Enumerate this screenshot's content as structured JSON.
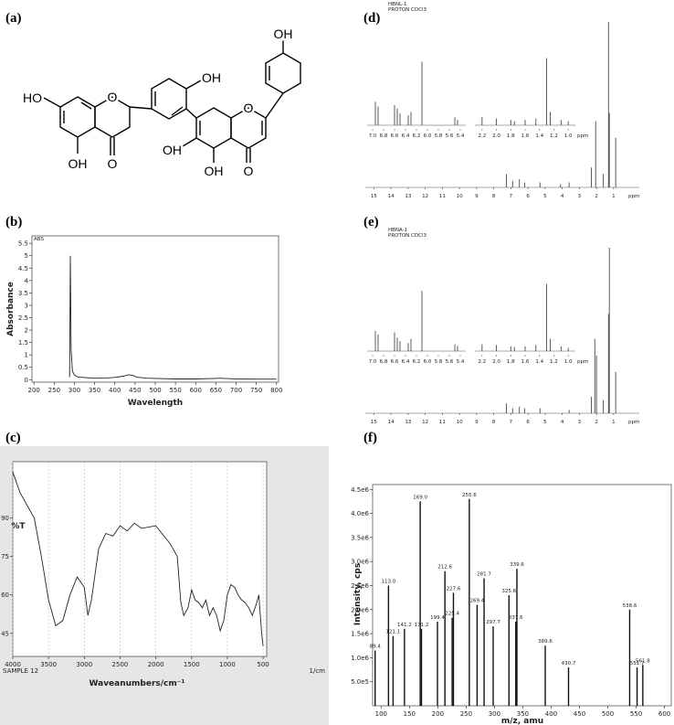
{
  "panel_labels": [
    "(a)",
    "(b)",
    "(c)",
    "(d)",
    "(e)",
    "(f)"
  ],
  "structure": {
    "labels": [
      "HO",
      "OH",
      "O",
      "O",
      "OH",
      "OH",
      "OH",
      "O",
      "O",
      "OH"
    ]
  },
  "chart_data": [
    {
      "type": "line",
      "x_label": "Wavelength",
      "y_label": "Absorbance",
      "y_unit_label": "ABS",
      "x": [
        288,
        289,
        290,
        292,
        295,
        300,
        310,
        330,
        350,
        380,
        400,
        420,
        435,
        445,
        455,
        480,
        500,
        550,
        600,
        650,
        660,
        700,
        750,
        800
      ],
      "values": [
        0.1,
        2.5,
        5.0,
        1.2,
        0.35,
        0.18,
        0.1,
        0.08,
        0.06,
        0.07,
        0.09,
        0.14,
        0.2,
        0.17,
        0.1,
        0.06,
        0.05,
        0.03,
        0.03,
        0.05,
        0.06,
        0.03,
        0.02,
        0.02
      ],
      "color": "#222",
      "xlim": [
        195,
        805
      ],
      "ylim": [
        -0.1,
        5.8
      ],
      "xticks": [
        200,
        250,
        300,
        350,
        400,
        450,
        500,
        550,
        600,
        650,
        700,
        750,
        800
      ],
      "yticks": [
        0,
        0.5,
        1,
        1.5,
        2,
        2.5,
        3,
        3.5,
        4,
        4.5,
        5,
        5.5
      ],
      "grid": false
    },
    {
      "type": "line",
      "x_label": "Waveanumbers/cm⁻¹",
      "y_label": "%T",
      "note": "SAMPLE 12",
      "x_unit": "1/cm",
      "x": [
        4000,
        3900,
        3700,
        3600,
        3500,
        3400,
        3300,
        3200,
        3100,
        3000,
        2950,
        2900,
        2800,
        2700,
        2600,
        2500,
        2400,
        2300,
        2200,
        2000,
        1800,
        1700,
        1650,
        1610,
        1550,
        1500,
        1450,
        1400,
        1350,
        1300,
        1250,
        1200,
        1150,
        1100,
        1050,
        1000,
        950,
        900,
        850,
        800,
        750,
        700,
        650,
        600,
        560,
        520,
        500
      ],
      "values": [
        108,
        100,
        90,
        75,
        58,
        48,
        50,
        60,
        67,
        63,
        52,
        58,
        78,
        84,
        83,
        87,
        85,
        88,
        86,
        87,
        80,
        75,
        57,
        52,
        55,
        62,
        58,
        57,
        55,
        58,
        52,
        55,
        52,
        46,
        50,
        60,
        64,
        63,
        60,
        58,
        57,
        55,
        52,
        56,
        60,
        45,
        40
      ],
      "color": "#222",
      "xlim": [
        4000,
        450
      ],
      "ylim": [
        36,
        112
      ],
      "xticks": [
        4000,
        3500,
        3000,
        2500,
        2000,
        1500,
        1000,
        500
      ],
      "yticks": [
        45,
        60,
        75,
        90
      ],
      "grid": true
    },
    {
      "type": "nmr",
      "header": [
        "HBNL-1",
        "PROTON CDCl3"
      ],
      "x_unit": "ppm",
      "color": "#333",
      "xlim": [
        15.5,
        -0.5
      ],
      "ylim": [
        0,
        105
      ],
      "xticks": [
        15,
        14,
        13,
        12,
        11,
        10,
        9,
        8,
        7,
        6,
        5,
        4,
        3,
        2,
        1
      ],
      "x": [
        7.26,
        6.9,
        6.5,
        6.2,
        5.3,
        4.1,
        3.6,
        2.3,
        2.05,
        1.6,
        1.3,
        1.25,
        0.88
      ],
      "values": [
        8,
        4,
        5,
        3,
        3,
        2,
        3,
        12,
        40,
        8,
        100,
        45,
        30
      ],
      "insets": [
        {
          "xlim": [
            7.1,
            5.3
          ],
          "ylim": [
            0,
            105
          ],
          "xticks": [
            {
              "value": 7,
              "label": "7.0"
            },
            6.8,
            6.6,
            6.4,
            6.2,
            {
              "value": 6,
              "label": "6.0"
            },
            5.8,
            5.6,
            5.4
          ],
          "x": [
            6.95,
            6.9,
            6.6,
            6.55,
            6.5,
            6.35,
            6.3,
            6.1,
            5.5,
            5.45
          ],
          "values": [
            35,
            28,
            30,
            25,
            18,
            15,
            20,
            95,
            12,
            8
          ]
        },
        {
          "xlim": [
            2.3,
            0.9
          ],
          "ylim": [
            0,
            105
          ],
          "x_unit": "ppm",
          "xticks": [
            2.2,
            {
              "value": 2,
              "label": "2.0"
            },
            1.8,
            1.6,
            1.4,
            1.2,
            {
              "value": 1,
              "label": "1.0"
            }
          ],
          "x": [
            2.2,
            2.0,
            1.8,
            1.75,
            1.6,
            1.45,
            1.3,
            1.25,
            1.1,
            1.0
          ],
          "values": [
            12,
            10,
            8,
            6,
            8,
            10,
            100,
            20,
            8,
            6
          ]
        }
      ]
    },
    {
      "type": "nmr",
      "header": [
        "HBNA-1",
        "PROTON CDCl3"
      ],
      "x_unit": "ppm",
      "color": "#333",
      "xlim": [
        15.5,
        -0.5
      ],
      "ylim": [
        0,
        105
      ],
      "xticks": [
        15,
        14,
        13,
        12,
        11,
        10,
        9,
        8,
        7,
        6,
        5,
        4,
        3,
        2,
        1
      ],
      "x": [
        7.26,
        6.9,
        6.5,
        6.2,
        5.3,
        3.6,
        2.3,
        2.1,
        2.0,
        1.6,
        1.3,
        1.25,
        0.88
      ],
      "values": [
        6,
        3,
        4,
        3,
        3,
        2,
        10,
        45,
        35,
        8,
        60,
        100,
        25
      ],
      "insets": [
        {
          "xlim": [
            7.1,
            5.3
          ],
          "ylim": [
            0,
            105
          ],
          "xticks": [
            {
              "value": 7,
              "label": "7.0"
            },
            6.8,
            6.6,
            6.4,
            6.2,
            {
              "value": 6,
              "label": "6.0"
            },
            5.8,
            5.6,
            5.4
          ],
          "x": [
            6.95,
            6.9,
            6.6,
            6.55,
            6.5,
            6.35,
            6.3,
            6.1,
            5.5,
            5.45
          ],
          "values": [
            30,
            25,
            28,
            20,
            15,
            12,
            18,
            90,
            10,
            8
          ]
        },
        {
          "xlim": [
            2.3,
            0.9
          ],
          "ylim": [
            0,
            105
          ],
          "x_unit": "ppm",
          "xticks": [
            2.2,
            {
              "value": 2,
              "label": "2.0"
            },
            1.8,
            1.6,
            1.4,
            1.2,
            {
              "value": 1,
              "label": "1.0"
            }
          ],
          "x": [
            2.2,
            2.0,
            1.8,
            1.75,
            1.6,
            1.45,
            1.3,
            1.25,
            1.1,
            1.0
          ],
          "values": [
            10,
            9,
            7,
            6,
            7,
            9,
            100,
            18,
            7,
            5
          ]
        }
      ]
    },
    {
      "type": "bar",
      "x_label": "m/z, amu",
      "y_label": "Intensity, cps",
      "color": "#111",
      "x": [
        89.4,
        113.0,
        121.1,
        141.2,
        169.0,
        171.2,
        199.4,
        212.6,
        225.4,
        227.6,
        255.6,
        269.4,
        281.7,
        297.7,
        325.6,
        337.6,
        339.6,
        389.6,
        430.7,
        538.6,
        551.7,
        561.8
      ],
      "x_labels": [
        "89.4",
        "113.0",
        "121.1",
        "141.2",
        "169.0",
        "171.2",
        "199.4",
        "212.6",
        "225.4",
        "227.6",
        "255.6",
        "269.4",
        "281.7",
        "297.7",
        "325.6",
        "337.6",
        "339.6",
        "389.6",
        "430.7",
        "538.6",
        "551.7",
        "561.8"
      ],
      "values": [
        1150000,
        2500000,
        1450000,
        1600000,
        4250000,
        1600000,
        1750000,
        2800000,
        1830000,
        2350000,
        4300000,
        2100000,
        2650000,
        1650000,
        2300000,
        1750000,
        2850000,
        1250000,
        800000,
        2000000,
        800000,
        850000
      ],
      "xlim": [
        85,
        612
      ],
      "ylim": [
        0,
        4600000
      ],
      "xticks": [
        100,
        150,
        200,
        250,
        300,
        350,
        400,
        450,
        500,
        550,
        600
      ],
      "yticks": [
        {
          "value": 500000,
          "label": "5.0e5"
        },
        {
          "value": 1000000,
          "label": "1.0e6"
        },
        {
          "value": 1500000,
          "label": "1.5e6"
        },
        {
          "value": 2000000,
          "label": "2.0e6"
        },
        {
          "value": 2500000,
          "label": "2.5e6"
        },
        {
          "value": 3000000,
          "label": "3.0e6"
        },
        {
          "value": 3500000,
          "label": "3.5e6"
        },
        {
          "value": 4000000,
          "label": "4.0e6"
        },
        {
          "value": 4500000,
          "label": "4.5e6"
        }
      ]
    }
  ]
}
